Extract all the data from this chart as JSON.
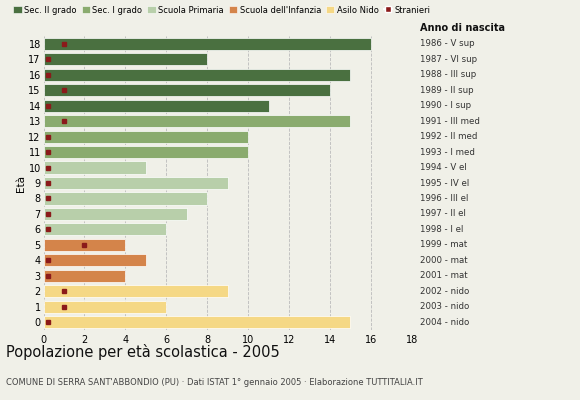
{
  "ages": [
    0,
    1,
    2,
    3,
    4,
    5,
    6,
    7,
    8,
    9,
    10,
    11,
    12,
    13,
    14,
    15,
    16,
    17,
    18
  ],
  "bar_values": [
    15,
    6,
    9,
    4,
    5,
    4,
    6,
    7,
    8,
    9,
    5,
    10,
    10,
    15,
    11,
    14,
    15,
    8,
    16
  ],
  "stranieri_x": [
    0.2,
    1,
    1,
    0.2,
    0.2,
    2,
    0.2,
    0.2,
    0.2,
    0.2,
    0.2,
    0.2,
    0.2,
    1,
    0.2,
    1,
    0.2,
    0.2,
    1
  ],
  "bar_colors": [
    "#f5d885",
    "#f5d885",
    "#f5d885",
    "#d4844a",
    "#d4844a",
    "#d4844a",
    "#b8cfaa",
    "#b8cfaa",
    "#b8cfaa",
    "#b8cfaa",
    "#b8cfaa",
    "#8aab6e",
    "#8aab6e",
    "#8aab6e",
    "#4a7040",
    "#4a7040",
    "#4a7040",
    "#4a7040",
    "#4a7040"
  ],
  "anno_labels": [
    "2004 - nido",
    "2003 - nido",
    "2002 - nido",
    "2001 - mat",
    "2000 - mat",
    "1999 - mat",
    "1998 - I el",
    "1997 - II el",
    "1996 - III el",
    "1995 - IV el",
    "1994 - V el",
    "1993 - I med",
    "1992 - II med",
    "1991 - III med",
    "1990 - I sup",
    "1989 - II sup",
    "1988 - III sup",
    "1987 - VI sup",
    "1986 - V sup"
  ],
  "stranieri_color": "#8b1a1a",
  "legend_labels": [
    "Sec. II grado",
    "Sec. I grado",
    "Scuola Primaria",
    "Scuola dell'Infanzia",
    "Asilo Nido",
    "Stranieri"
  ],
  "legend_colors": [
    "#4a7040",
    "#8aab6e",
    "#b8cfaa",
    "#d4844a",
    "#f5d885",
    "#8b1a1a"
  ],
  "title": "Popolazione per età scolastica - 2005",
  "subtitle": "COMUNE DI SERRA SANT'ABBONDIO (PU) · Dati ISTAT 1° gennaio 2005 · Elaborazione TUTTITALIA.IT",
  "ylabel_left": "Età",
  "header_right": "Anno di nascita",
  "background_color": "#f0f0e8",
  "grid_color": "#bbbbbb"
}
